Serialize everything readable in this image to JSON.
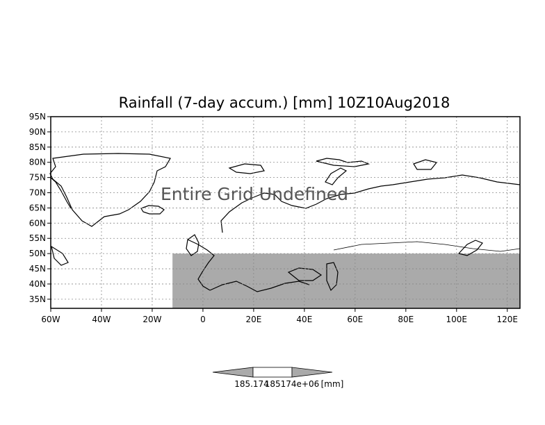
{
  "title": "Rainfall (7-day accum.) [mm] 10Z10Aug2018",
  "overlay_message": "Entire Grid Undefined",
  "map": {
    "projection": "latlon",
    "lon_range": [
      -60,
      125
    ],
    "lat_range": [
      32,
      95
    ],
    "shaded_region": {
      "lat_max": 50,
      "lon_min": -12,
      "lon_max": 125,
      "color": "#aaaaaa"
    },
    "grid": true,
    "land_outline_color": "#000000"
  },
  "axes": {
    "lat_ticks": [
      "95N",
      "90N",
      "85N",
      "80N",
      "75N",
      "70N",
      "65N",
      "60N",
      "55N",
      "50N",
      "45N",
      "40N",
      "35N"
    ],
    "lat_values": [
      95,
      90,
      85,
      80,
      75,
      70,
      65,
      60,
      55,
      50,
      45,
      40,
      35
    ],
    "lon_ticks": [
      "60W",
      "40W",
      "20W",
      "0",
      "20E",
      "40E",
      "60E",
      "80E",
      "100E",
      "120E"
    ],
    "lon_values": [
      -60,
      -40,
      -20,
      0,
      20,
      40,
      60,
      80,
      100,
      120
    ]
  },
  "colorbar": {
    "left_label": "185.174",
    "center_label": "185174e+06",
    "unit": "[mm]",
    "arrow_color": "#aaaaaa"
  }
}
